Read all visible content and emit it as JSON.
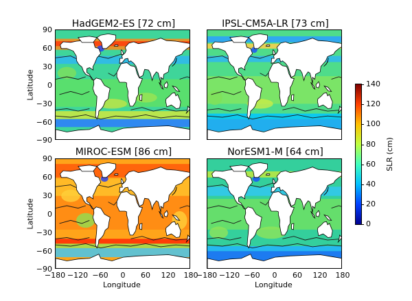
{
  "panels": [
    {
      "title": "HadGEM2-ES [72 cm]",
      "model": "HadGEM2-ES",
      "global_mean_cm": 72
    },
    {
      "title": "IPSL-CM5A-LR [73 cm]",
      "model": "IPSL-CM5A-LR",
      "global_mean_cm": 73
    },
    {
      "title": "MIROC-ESM [86 cm]",
      "model": "MIROC-ESM",
      "global_mean_cm": 86
    },
    {
      "title": "NorESM1-M [64 cm]",
      "model": "NorESM1-M",
      "global_mean_cm": 64
    }
  ],
  "axes": {
    "ylabel": "Latitude",
    "xlabel": "Longitude",
    "yticks": [
      "90",
      "60",
      "30",
      "0",
      "−30",
      "−60",
      "−90"
    ],
    "xticks": [
      "−180",
      "−120",
      "−60",
      "0",
      "60",
      "120",
      "180"
    ],
    "xlim": [
      -180,
      180
    ],
    "ylim": [
      -90,
      90
    ]
  },
  "colorbar": {
    "label": "SLR (cm)",
    "ticks": [
      "140",
      "120",
      "100",
      "80",
      "60",
      "40",
      "20",
      "0"
    ],
    "range": [
      0,
      140
    ],
    "colors": [
      "#00008f",
      "#0040ff",
      "#00c0ff",
      "#40ffbf",
      "#bfff40",
      "#ffc000",
      "#ff4000",
      "#800000"
    ]
  }
}
